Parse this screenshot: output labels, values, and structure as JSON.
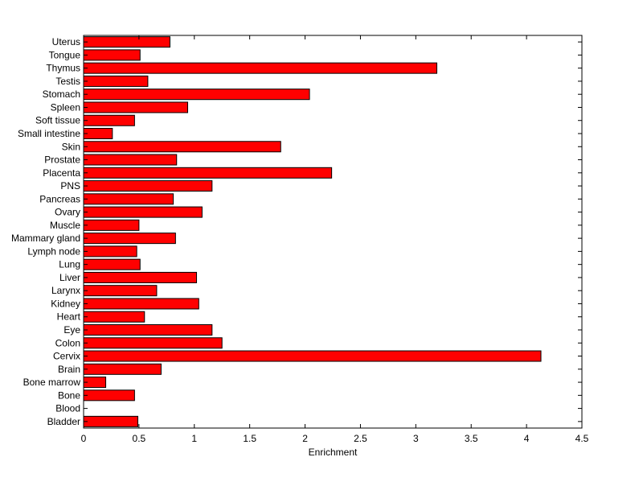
{
  "chart_data": {
    "type": "bar",
    "orientation": "horizontal",
    "title": "",
    "xlabel": "Enrichment",
    "ylabel": "",
    "xlim": [
      0,
      4.5
    ],
    "x_ticks": [
      "0",
      "0.5",
      "1",
      "1.5",
      "2",
      "2.5",
      "3",
      "3.5",
      "4",
      "4.5"
    ],
    "grid": false,
    "categories": [
      "Bladder",
      "Blood",
      "Bone",
      "Bone marrow",
      "Brain",
      "Cervix",
      "Colon",
      "Eye",
      "Heart",
      "Kidney",
      "Larynx",
      "Liver",
      "Lung",
      "Lymph node",
      "Mammary gland",
      "Muscle",
      "Ovary",
      "Pancreas",
      "PNS",
      "Placenta",
      "Prostate",
      "Skin",
      "Small intestine",
      "Soft tissue",
      "Spleen",
      "Stomach",
      "Testis",
      "Thymus",
      "Tongue",
      "Uterus"
    ],
    "values": [
      0.49,
      0.0,
      0.46,
      0.2,
      0.7,
      4.13,
      1.25,
      1.16,
      0.55,
      1.04,
      0.66,
      1.02,
      0.51,
      0.48,
      0.83,
      0.5,
      1.07,
      0.81,
      1.16,
      2.24,
      0.84,
      1.78,
      0.26,
      0.46,
      0.94,
      2.04,
      0.58,
      3.19,
      0.51,
      0.78
    ],
    "colors": {
      "bar_fill": "#ff0000",
      "bar_stroke": "#000000",
      "axis": "#000000"
    }
  }
}
